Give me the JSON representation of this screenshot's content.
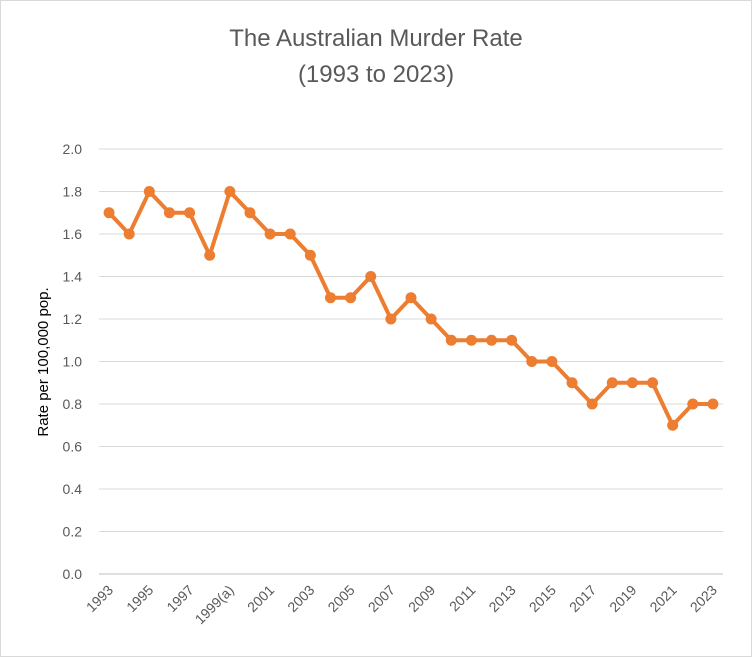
{
  "chart_data": {
    "type": "line",
    "title": "The Australian Murder Rate",
    "subtitle": "(1993 to 2023)",
    "xlabel": "",
    "ylabel": "Rate per 100,000 pop.",
    "ylim": [
      0,
      2.0
    ],
    "yticks": [
      "0.0",
      "0.2",
      "0.4",
      "0.6",
      "0.8",
      "1.0",
      "1.2",
      "1.4",
      "1.6",
      "1.8",
      "2.0"
    ],
    "grid": true,
    "legend": "none",
    "color": "#ED7D31",
    "categories": [
      "1993",
      "1994",
      "1995",
      "1996",
      "1997",
      "1998",
      "1999(a)",
      "2000",
      "2001",
      "2002",
      "2003",
      "2004",
      "2005",
      "2006",
      "2007",
      "2008",
      "2009",
      "2010",
      "2011",
      "2012",
      "2013",
      "2014",
      "2015",
      "2016",
      "2017",
      "2018",
      "2019",
      "2020",
      "2021",
      "2022",
      "2023"
    ],
    "xtick_labels": [
      "1993",
      "",
      "1995",
      "",
      "1997",
      "",
      "1999(a)",
      "",
      "2001",
      "",
      "2003",
      "",
      "2005",
      "",
      "2007",
      "",
      "2009",
      "",
      "2011",
      "",
      "2013",
      "",
      "2015",
      "",
      "2017",
      "",
      "2019",
      "",
      "2021",
      "",
      "2023"
    ],
    "series": [
      {
        "name": "Rate per 100,000 pop.",
        "values": [
          1.7,
          1.6,
          1.8,
          1.7,
          1.7,
          1.5,
          1.8,
          1.7,
          1.6,
          1.6,
          1.5,
          1.3,
          1.3,
          1.4,
          1.2,
          1.3,
          1.2,
          1.1,
          1.1,
          1.1,
          1.1,
          1.0,
          1.0,
          0.9,
          0.8,
          0.9,
          0.9,
          0.9,
          0.7,
          0.8,
          0.8
        ]
      }
    ]
  }
}
